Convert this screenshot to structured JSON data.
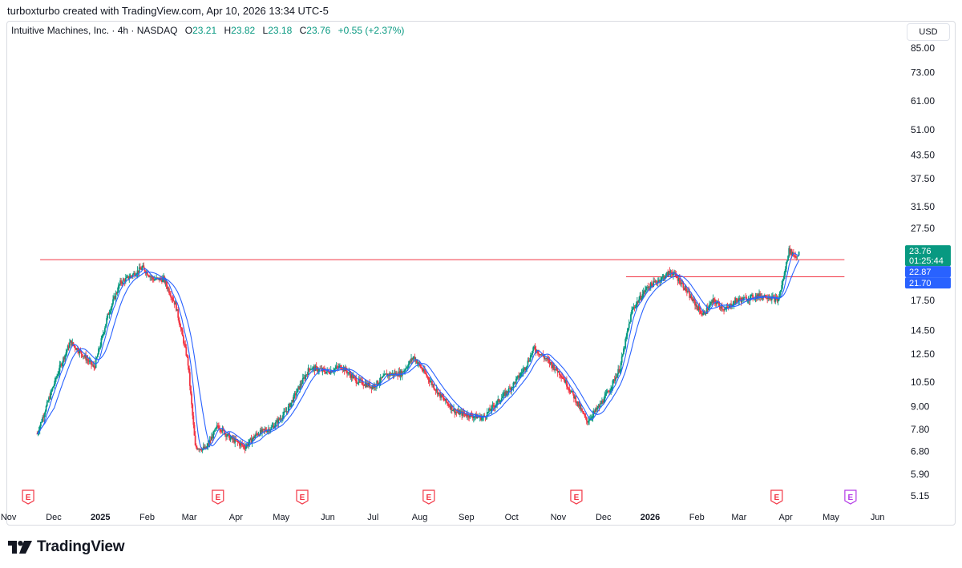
{
  "header": {
    "credit": "turboxturbo created with TradingView.com, Apr 10, 2026 13:34 UTC-5"
  },
  "legend": {
    "symbol": "Intuitive Machines, Inc. · 4h · NASDAQ",
    "open_label": "O",
    "open": "23.21",
    "high_label": "H",
    "high": "23.82",
    "low_label": "L",
    "low": "23.18",
    "close_label": "C",
    "close": "23.76",
    "change": "+0.55 (+2.37%)"
  },
  "currency": "USD",
  "logo": {
    "text": "TradingView",
    "icon": "tradingview-logo-icon"
  },
  "colors": {
    "up": "#089981",
    "down": "#f23645",
    "ma": "#2962ff",
    "hline": "#f23645",
    "earnings": "#f23645",
    "earnings_future": "#b43ce6"
  },
  "chart_data": {
    "type": "candlestick",
    "y_scale": "log",
    "ylim": [
      5.0,
      90.0
    ],
    "y_ticks": [
      "85.00",
      "73.00",
      "61.00",
      "51.00",
      "43.50",
      "37.50",
      "31.50",
      "27.50",
      "17.50",
      "14.50",
      "12.50",
      "10.50",
      "9.00",
      "7.80",
      "6.80",
      "5.90",
      "5.15"
    ],
    "x_ticks": [
      {
        "label": "Nov",
        "bold": false
      },
      {
        "label": "Dec",
        "bold": false
      },
      {
        "label": "2025",
        "bold": true
      },
      {
        "label": "Feb",
        "bold": false
      },
      {
        "label": "Mar",
        "bold": false
      },
      {
        "label": "Apr",
        "bold": false
      },
      {
        "label": "May",
        "bold": false
      },
      {
        "label": "Jun",
        "bold": false
      },
      {
        "label": "Jul",
        "bold": false
      },
      {
        "label": "Aug",
        "bold": false
      },
      {
        "label": "Sep",
        "bold": false
      },
      {
        "label": "Oct",
        "bold": false
      },
      {
        "label": "Nov",
        "bold": false
      },
      {
        "label": "Dec",
        "bold": false
      },
      {
        "label": "2026",
        "bold": true
      },
      {
        "label": "Feb",
        "bold": false
      },
      {
        "label": "Mar",
        "bold": false
      },
      {
        "label": "Apr",
        "bold": false
      },
      {
        "label": "May",
        "bold": false
      },
      {
        "label": "Jun",
        "bold": false
      }
    ],
    "price_anchors": [
      [
        "2024-11-20",
        7.6
      ],
      [
        "2024-11-28",
        9.5
      ],
      [
        "2024-12-05",
        11.5
      ],
      [
        "2024-12-12",
        13.5
      ],
      [
        "2024-12-20",
        12.5
      ],
      [
        "2024-12-28",
        11.5
      ],
      [
        "2025-01-06",
        16.0
      ],
      [
        "2025-01-14",
        19.5
      ],
      [
        "2025-01-22",
        20.5
      ],
      [
        "2025-01-29",
        21.5
      ],
      [
        "2025-02-05",
        20.0
      ],
      [
        "2025-02-12",
        20.0
      ],
      [
        "2025-02-20",
        17.0
      ],
      [
        "2025-02-28",
        12.0
      ],
      [
        "2025-03-05",
        7.0
      ],
      [
        "2025-03-12",
        6.9
      ],
      [
        "2025-03-20",
        8.0
      ],
      [
        "2025-03-28",
        7.4
      ],
      [
        "2025-04-07",
        7.0
      ],
      [
        "2025-04-15",
        7.6
      ],
      [
        "2025-04-25",
        7.9
      ],
      [
        "2025-05-05",
        8.8
      ],
      [
        "2025-05-12",
        10.0
      ],
      [
        "2025-05-20",
        11.5
      ],
      [
        "2025-06-01",
        11.2
      ],
      [
        "2025-06-10",
        11.6
      ],
      [
        "2025-06-20",
        10.6
      ],
      [
        "2025-07-01",
        10.2
      ],
      [
        "2025-07-10",
        11.0
      ],
      [
        "2025-07-20",
        11.1
      ],
      [
        "2025-07-28",
        12.3
      ],
      [
        "2025-08-05",
        11.0
      ],
      [
        "2025-08-15",
        9.6
      ],
      [
        "2025-08-25",
        8.7
      ],
      [
        "2025-09-05",
        8.5
      ],
      [
        "2025-09-12",
        8.4
      ],
      [
        "2025-09-22",
        9.3
      ],
      [
        "2025-10-01",
        10.2
      ],
      [
        "2025-10-10",
        11.5
      ],
      [
        "2025-10-16",
        13.0
      ],
      [
        "2025-10-25",
        12.0
      ],
      [
        "2025-11-03",
        11.0
      ],
      [
        "2025-11-12",
        9.5
      ],
      [
        "2025-11-20",
        8.2
      ],
      [
        "2025-11-28",
        9.0
      ],
      [
        "2025-12-05",
        10.0
      ],
      [
        "2025-12-12",
        11.5
      ],
      [
        "2025-12-20",
        16.5
      ],
      [
        "2025-12-30",
        19.0
      ],
      [
        "2026-01-08",
        20.0
      ],
      [
        "2026-01-15",
        21.0
      ],
      [
        "2026-01-22",
        19.5
      ],
      [
        "2026-01-28",
        17.8
      ],
      [
        "2026-02-05",
        16.0
      ],
      [
        "2026-02-12",
        17.5
      ],
      [
        "2026-02-20",
        16.5
      ],
      [
        "2026-02-27",
        17.5
      ],
      [
        "2026-03-06",
        17.7
      ],
      [
        "2026-03-13",
        18.0
      ],
      [
        "2026-03-20",
        18.0
      ],
      [
        "2026-03-27",
        17.5
      ],
      [
        "2026-03-31",
        20.5
      ],
      [
        "2026-04-03",
        24.0
      ],
      [
        "2026-04-08",
        23.0
      ],
      [
        "2026-04-10",
        23.76
      ]
    ],
    "horizontal_lines": [
      {
        "price": 22.6,
        "from": "2024-11-22",
        "to": "2026-05-10"
      },
      {
        "price": 20.3,
        "from": "2025-12-16",
        "to": "2026-05-10"
      }
    ],
    "earnings_markers": [
      {
        "date": "2024-11-14",
        "label": "E",
        "future": false
      },
      {
        "date": "2025-03-20",
        "label": "E",
        "future": false
      },
      {
        "date": "2025-05-15",
        "label": "E",
        "future": false
      },
      {
        "date": "2025-08-07",
        "label": "E",
        "future": false
      },
      {
        "date": "2025-11-13",
        "label": "E",
        "future": false
      },
      {
        "date": "2026-03-26",
        "label": "E",
        "future": false
      },
      {
        "date": "2026-05-14",
        "label": "E",
        "future": true
      }
    ],
    "price_labels": [
      {
        "price": 23.76,
        "text": "23.76",
        "sub": "01:25:44",
        "color": "#089981"
      },
      {
        "price": 22.87,
        "text": "22.87",
        "color": "#2962ff"
      },
      {
        "price": 21.7,
        "text": "21.70",
        "color": "#2962ff"
      }
    ]
  }
}
